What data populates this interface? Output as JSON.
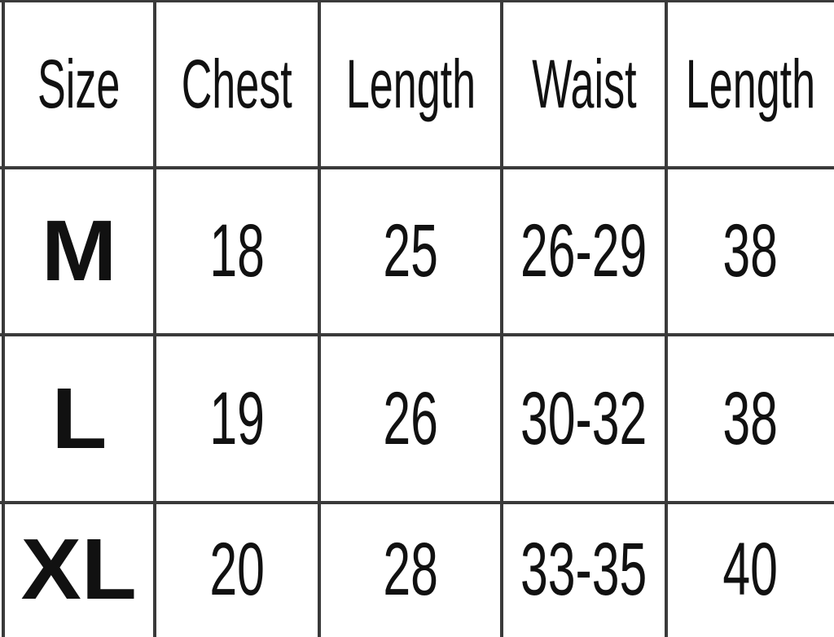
{
  "table": {
    "headers": [
      "Size",
      "Chest",
      "Length",
      "Waist",
      "Length"
    ],
    "rows": [
      [
        "M",
        "18",
        "25",
        "26-29",
        "38"
      ],
      [
        "L",
        "19",
        "26",
        "30-32",
        "38"
      ],
      [
        "XL",
        "20",
        "28",
        "33-35",
        "40"
      ]
    ]
  }
}
